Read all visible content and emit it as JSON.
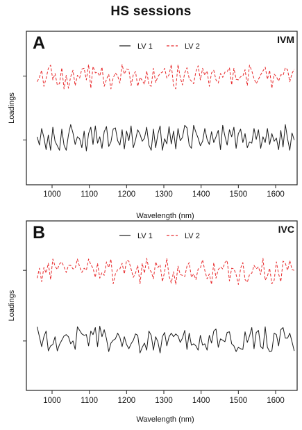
{
  "title": "HS sessions",
  "chart_data": [
    {
      "type": "line",
      "panel_letter": "A",
      "panel_label": "IVM",
      "xlabel": "Wavelength (nm)",
      "ylabel": "Loadings",
      "xlim": [
        950,
        1660
      ],
      "ylim": [
        -1.2,
        1.2
      ],
      "x_ticks": [
        1000,
        1100,
        1200,
        1300,
        1400,
        1500,
        1600
      ],
      "y_ticks": [
        -0.5,
        0.5
      ],
      "grid": false,
      "legend_position": "top-center",
      "series_colors": [
        "#1a1a1a",
        "#e8282a"
      ],
      "series_dash": [
        "none",
        "4,2.5"
      ],
      "x_start": 960,
      "x_step": 6,
      "series": [
        {
          "name": "LV 1",
          "values": [
            -0.45,
            -0.58,
            -0.32,
            -0.46,
            -0.65,
            -0.42,
            -0.66,
            -0.3,
            -0.52,
            -0.59,
            -0.66,
            -0.33,
            -0.58,
            -0.66,
            -0.42,
            -0.26,
            -0.39,
            -0.57,
            -0.45,
            -0.48,
            -0.62,
            -0.36,
            -0.67,
            -0.4,
            -0.3,
            -0.57,
            -0.28,
            -0.55,
            -0.45,
            -0.63,
            -0.37,
            -0.29,
            -0.6,
            -0.53,
            -0.33,
            -0.31,
            -0.51,
            -0.58,
            -0.34,
            -0.64,
            -0.36,
            -0.51,
            -0.28,
            -0.62,
            -0.5,
            -0.34,
            -0.41,
            -0.52,
            -0.47,
            -0.3,
            -0.58,
            -0.66,
            -0.33,
            -0.62,
            -0.41,
            -0.28,
            -0.66,
            -0.48,
            -0.56,
            -0.29,
            -0.56,
            -0.36,
            -0.64,
            -0.32,
            -0.51,
            -0.46,
            -0.27,
            -0.31,
            -0.58,
            -0.63,
            -0.27,
            -0.38,
            -0.47,
            -0.59,
            -0.52,
            -0.32,
            -0.49,
            -0.57,
            -0.37,
            -0.54,
            -0.45,
            -0.35,
            -0.65,
            -0.27,
            -0.44,
            -0.58,
            -0.34,
            -0.45,
            -0.3,
            -0.63,
            -0.4,
            -0.33,
            -0.54,
            -0.4,
            -0.62,
            -0.53,
            -0.55,
            -0.32,
            -0.49,
            -0.34,
            -0.63,
            -0.45,
            -0.54,
            -0.32,
            -0.57,
            -0.4,
            -0.52,
            -0.47,
            -0.65,
            -0.35,
            -0.61,
            -0.26,
            -0.48,
            -0.66,
            -0.39,
            -0.5
          ]
        },
        {
          "name": "LV 2",
          "values": [
            0.41,
            0.48,
            0.59,
            0.34,
            0.46,
            0.62,
            0.67,
            0.44,
            0.54,
            0.36,
            0.38,
            0.63,
            0.3,
            0.51,
            0.31,
            0.49,
            0.59,
            0.35,
            0.51,
            0.47,
            0.61,
            0.62,
            0.44,
            0.68,
            0.31,
            0.65,
            0.55,
            0.56,
            0.5,
            0.64,
            0.34,
            0.45,
            0.53,
            0.3,
            0.47,
            0.55,
            0.5,
            0.39,
            0.68,
            0.53,
            0.61,
            0.6,
            0.35,
            0.52,
            0.57,
            0.34,
            0.48,
            0.43,
            0.37,
            0.58,
            0.36,
            0.34,
            0.62,
            0.4,
            0.49,
            0.54,
            0.56,
            0.62,
            0.47,
            0.52,
            0.68,
            0.35,
            0.3,
            0.68,
            0.48,
            0.36,
            0.55,
            0.63,
            0.46,
            0.42,
            0.38,
            0.57,
            0.66,
            0.44,
            0.62,
            0.51,
            0.58,
            0.34,
            0.55,
            0.59,
            0.44,
            0.39,
            0.54,
            0.48,
            0.56,
            0.57,
            0.63,
            0.36,
            0.62,
            0.45,
            0.44,
            0.49,
            0.5,
            0.6,
            0.35,
            0.67,
            0.58,
            0.46,
            0.38,
            0.45,
            0.52,
            0.58,
            0.64,
            0.45,
            0.59,
            0.31,
            0.53,
            0.49,
            0.42,
            0.52,
            0.51,
            0.63,
            0.6,
            0.41,
            0.54,
            0.61
          ]
        }
      ]
    },
    {
      "type": "line",
      "panel_letter": "B",
      "panel_label": "IVC",
      "xlabel": "Wavelength (nm)",
      "ylabel": "Loadings",
      "xlim": [
        950,
        1660
      ],
      "ylim": [
        -1.2,
        1.2
      ],
      "x_ticks": [
        1000,
        1100,
        1200,
        1300,
        1400,
        1500,
        1600
      ],
      "y_ticks": [
        -0.5,
        0.5
      ],
      "grid": false,
      "legend_position": "top-center",
      "series_colors": [
        "#1a1a1a",
        "#e8282a"
      ],
      "series_dash": [
        "none",
        "4,2.5"
      ],
      "x_start": 960,
      "x_step": 6,
      "series": [
        {
          "name": "LV 1",
          "values": [
            -0.3,
            -0.44,
            -0.58,
            -0.44,
            -0.36,
            -0.64,
            -0.57,
            -0.55,
            -0.44,
            -0.64,
            -0.55,
            -0.49,
            -0.43,
            -0.41,
            -0.44,
            -0.54,
            -0.5,
            -0.62,
            -0.3,
            -0.35,
            -0.4,
            -0.42,
            -0.41,
            -0.57,
            -0.36,
            -0.41,
            -0.31,
            -0.58,
            -0.29,
            -0.44,
            -0.34,
            -0.47,
            -0.65,
            -0.53,
            -0.49,
            -0.47,
            -0.39,
            -0.45,
            -0.58,
            -0.44,
            -0.55,
            -0.61,
            -0.54,
            -0.49,
            -0.4,
            -0.42,
            -0.67,
            -0.59,
            -0.53,
            -0.63,
            -0.36,
            -0.42,
            -0.63,
            -0.44,
            -0.51,
            -0.67,
            -0.44,
            -0.38,
            -0.57,
            -0.44,
            -0.39,
            -0.44,
            -0.4,
            -0.43,
            -0.52,
            -0.46,
            -0.35,
            -0.62,
            -0.39,
            -0.56,
            -0.54,
            -0.57,
            -0.63,
            -0.42,
            -0.56,
            -0.54,
            -0.63,
            -0.42,
            -0.53,
            -0.36,
            -0.33,
            -0.59,
            -0.47,
            -0.49,
            -0.51,
            -0.38,
            -0.37,
            -0.54,
            -0.57,
            -0.65,
            -0.59,
            -0.61,
            -0.62,
            -0.37,
            -0.52,
            -0.43,
            -0.31,
            -0.61,
            -0.38,
            -0.35,
            -0.58,
            -0.61,
            -0.3,
            -0.59,
            -0.65,
            -0.64,
            -0.39,
            -0.41,
            -0.57,
            -0.34,
            -0.31,
            -0.46,
            -0.46,
            -0.39,
            -0.51,
            -0.64
          ]
        },
        {
          "name": "LV 2",
          "values": [
            0.39,
            0.53,
            0.34,
            0.54,
            0.46,
            0.6,
            0.37,
            0.66,
            0.56,
            0.51,
            0.59,
            0.62,
            0.55,
            0.47,
            0.57,
            0.57,
            0.52,
            0.53,
            0.66,
            0.55,
            0.47,
            0.53,
            0.5,
            0.66,
            0.58,
            0.53,
            0.4,
            0.6,
            0.39,
            0.47,
            0.43,
            0.62,
            0.54,
            0.66,
            0.31,
            0.45,
            0.51,
            0.52,
            0.6,
            0.45,
            0.64,
            0.63,
            0.52,
            0.4,
            0.46,
            0.57,
            0.31,
            0.6,
            0.46,
            0.67,
            0.52,
            0.48,
            0.38,
            0.62,
            0.54,
            0.58,
            0.34,
            0.48,
            0.67,
            0.42,
            0.32,
            0.48,
            0.3,
            0.56,
            0.44,
            0.43,
            0.41,
            0.56,
            0.61,
            0.4,
            0.45,
            0.37,
            0.52,
            0.53,
            0.65,
            0.5,
            0.38,
            0.45,
            0.3,
            0.61,
            0.39,
            0.51,
            0.55,
            0.52,
            0.61,
            0.64,
            0.35,
            0.53,
            0.52,
            0.44,
            0.3,
            0.53,
            0.61,
            0.37,
            0.33,
            0.44,
            0.46,
            0.57,
            0.52,
            0.55,
            0.44,
            0.67,
            0.36,
            0.42,
            0.53,
            0.31,
            0.36,
            0.62,
            0.45,
            0.34,
            0.63,
            0.6,
            0.5,
            0.64,
            0.51,
            0.5
          ]
        }
      ]
    }
  ]
}
